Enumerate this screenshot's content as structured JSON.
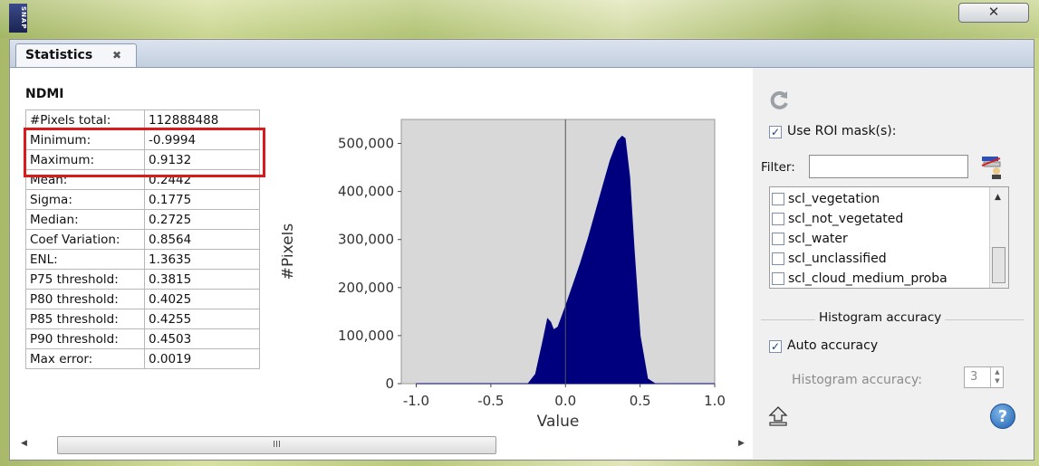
{
  "app": {
    "logo_text": "SNAP",
    "close_glyph": "✕"
  },
  "tab": {
    "label": "Statistics",
    "close_glyph": "✖"
  },
  "stats": {
    "band": "NDMI",
    "rows": [
      {
        "key": "#Pixels total:",
        "value": "112888488"
      },
      {
        "key": "Minimum:",
        "value": "-0.9994"
      },
      {
        "key": "Maximum:",
        "value": "0.9132"
      },
      {
        "key": "Mean:",
        "value": "0.2442"
      },
      {
        "key": "Sigma:",
        "value": "0.1775"
      },
      {
        "key": "Median:",
        "value": "0.2725"
      },
      {
        "key": "Coef Variation:",
        "value": "0.8564"
      },
      {
        "key": "ENL:",
        "value": "1.3635"
      },
      {
        "key": "P75 threshold:",
        "value": "0.3815"
      },
      {
        "key": "P80 threshold:",
        "value": "0.4025"
      },
      {
        "key": "P85 threshold:",
        "value": "0.4255"
      },
      {
        "key": "P90 threshold:",
        "value": "0.4503"
      },
      {
        "key": "Max error:",
        "value": "0.0019"
      }
    ],
    "highlight_color": "#d81c1c"
  },
  "chart_data": {
    "type": "area",
    "xlabel": "Value",
    "ylabel": "#Pixels",
    "xlim": [
      -1.1,
      1.0
    ],
    "ylim": [
      0,
      550000
    ],
    "x_ticks": [
      "-1.0",
      "-0.5",
      "0.0",
      "0.5",
      "1.0"
    ],
    "y_ticks": [
      "0",
      "100,000",
      "200,000",
      "300,000",
      "400,000",
      "500,000"
    ],
    "x_tick_values": [
      -1.0,
      -0.5,
      0.0,
      0.5,
      1.0
    ],
    "y_tick_values": [
      0,
      100000,
      200000,
      300000,
      400000,
      500000
    ],
    "vline_x": 0.0,
    "series": [
      {
        "color": "#00007f",
        "x": [
          -1.0,
          -0.25,
          -0.2,
          -0.15,
          -0.12,
          -0.1,
          -0.08,
          -0.05,
          0.0,
          0.05,
          0.1,
          0.15,
          0.2,
          0.25,
          0.3,
          0.35,
          0.38,
          0.4,
          0.43,
          0.46,
          0.5,
          0.55,
          0.6,
          1.0
        ],
        "values": [
          0,
          0,
          20000,
          90000,
          135000,
          128000,
          112000,
          118000,
          160000,
          205000,
          250000,
          300000,
          355000,
          410000,
          465000,
          505000,
          515000,
          510000,
          430000,
          280000,
          100000,
          10000,
          0,
          0
        ]
      }
    ],
    "grid": false,
    "plot_bg": "#d8d8d8"
  },
  "side": {
    "use_roi_label": "Use ROI mask(s):",
    "use_roi_checked": true,
    "filter_label": "Filter:",
    "filter_value": "",
    "masks": [
      {
        "label": "scl_vegetation",
        "checked": false
      },
      {
        "label": "scl_not_vegetated",
        "checked": false
      },
      {
        "label": "scl_water",
        "checked": false
      },
      {
        "label": "scl_unclassified",
        "checked": false
      },
      {
        "label": "scl_cloud_medium_proba",
        "checked": false
      }
    ],
    "hist_group_label": "Histogram accuracy",
    "auto_accuracy_label": "Auto accuracy",
    "auto_accuracy_checked": true,
    "histogram_accuracy_label": "Histogram accuracy:",
    "histogram_accuracy_value": "3",
    "help_glyph": "?"
  },
  "icons": {
    "refresh": "refresh-icon",
    "export": "export-icon",
    "help": "help-icon",
    "filter_select": "select-masks-icon"
  },
  "scroll": {
    "thumb_grip": "III"
  }
}
